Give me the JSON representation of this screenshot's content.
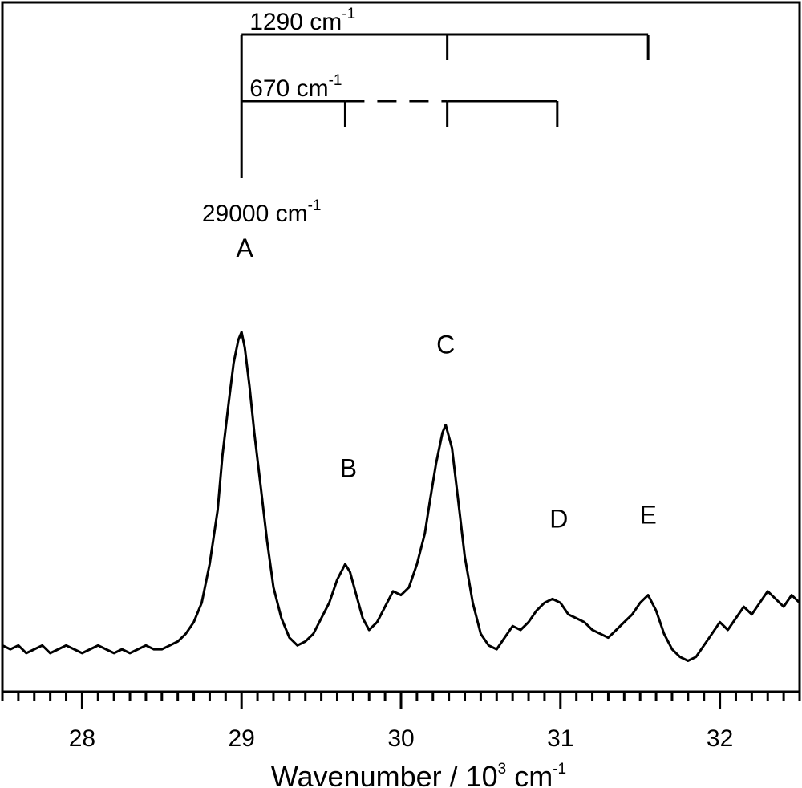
{
  "chart_data": {
    "type": "line",
    "xlabel": {
      "main": "Wavenumber / 10",
      "sup": "3",
      "after": " cm",
      "sup2": "-1"
    },
    "ylabel": "",
    "xlim": [
      27.5,
      32.5
    ],
    "ylim": [
      0,
      1
    ],
    "x_tick_labels": [
      "28",
      "29",
      "30",
      "31",
      "32"
    ],
    "x_tick_values": [
      28,
      29,
      30,
      31,
      32
    ],
    "x_minor_step": 0.1,
    "grid": false,
    "series": [
      {
        "x": [
          27.5,
          27.55,
          27.6,
          27.65,
          27.7,
          27.75,
          27.8,
          27.85,
          27.9,
          27.95,
          28.0,
          28.05,
          28.1,
          28.15,
          28.2,
          28.25,
          28.3,
          28.35,
          28.4,
          28.45,
          28.5,
          28.55,
          28.6,
          28.65,
          28.7,
          28.75,
          28.8,
          28.85,
          28.88,
          28.92,
          28.95,
          28.98,
          29.0,
          29.02,
          29.05,
          29.08,
          29.12,
          29.16,
          29.2,
          29.25,
          29.3,
          29.35,
          29.4,
          29.45,
          29.5,
          29.55,
          29.6,
          29.65,
          29.68,
          29.72,
          29.76,
          29.8,
          29.85,
          29.9,
          29.95,
          30.0,
          30.05,
          30.1,
          30.15,
          30.18,
          30.22,
          30.26,
          30.28,
          30.32,
          30.36,
          30.4,
          30.45,
          30.5,
          30.55,
          30.6,
          30.65,
          30.7,
          30.75,
          30.8,
          30.85,
          30.9,
          30.95,
          31.0,
          31.05,
          31.1,
          31.15,
          31.2,
          31.25,
          31.3,
          31.35,
          31.4,
          31.45,
          31.5,
          31.55,
          31.6,
          31.65,
          31.7,
          31.75,
          31.8,
          31.85,
          31.9,
          31.95,
          32.0,
          32.05,
          32.1,
          32.15,
          32.2,
          32.25,
          32.3,
          32.35,
          32.4,
          32.45,
          32.5
        ],
        "y": [
          0.07,
          0.06,
          0.07,
          0.05,
          0.06,
          0.07,
          0.05,
          0.06,
          0.07,
          0.06,
          0.05,
          0.06,
          0.07,
          0.06,
          0.05,
          0.06,
          0.05,
          0.06,
          0.07,
          0.06,
          0.06,
          0.07,
          0.08,
          0.1,
          0.13,
          0.18,
          0.28,
          0.42,
          0.56,
          0.7,
          0.8,
          0.86,
          0.88,
          0.84,
          0.74,
          0.62,
          0.48,
          0.34,
          0.22,
          0.14,
          0.09,
          0.07,
          0.08,
          0.1,
          0.14,
          0.18,
          0.24,
          0.28,
          0.26,
          0.2,
          0.14,
          0.11,
          0.13,
          0.17,
          0.21,
          0.2,
          0.22,
          0.28,
          0.36,
          0.44,
          0.54,
          0.62,
          0.64,
          0.58,
          0.44,
          0.3,
          0.18,
          0.1,
          0.07,
          0.06,
          0.09,
          0.12,
          0.11,
          0.13,
          0.16,
          0.18,
          0.19,
          0.18,
          0.15,
          0.14,
          0.13,
          0.11,
          0.1,
          0.09,
          0.11,
          0.13,
          0.15,
          0.18,
          0.2,
          0.16,
          0.1,
          0.06,
          0.04,
          0.03,
          0.04,
          0.07,
          0.1,
          0.13,
          0.11,
          0.14,
          0.17,
          0.15,
          0.18,
          0.21,
          0.19,
          0.17,
          0.2,
          0.18
        ]
      }
    ],
    "peak_labels": [
      {
        "text": "A",
        "x": 29.02,
        "y": 1.0
      },
      {
        "text": "B",
        "x": 29.67,
        "y": 0.43
      },
      {
        "text": "C",
        "x": 30.28,
        "y": 0.75
      },
      {
        "text": "D",
        "x": 30.99,
        "y": 0.3
      },
      {
        "text": "E",
        "x": 31.55,
        "y": 0.31
      }
    ],
    "progression_origin": {
      "x": 29.0,
      "label": "29000 cm",
      "label_sup": "-1"
    },
    "progressions": [
      {
        "label": "1290 cm",
        "label_sup": "-1",
        "markers": [
          30.29,
          31.55
        ],
        "dashed_range": null
      },
      {
        "label": "670 cm",
        "label_sup": "-1",
        "markers": [
          29.65,
          30.29,
          30.98
        ],
        "dashed_range": [
          29.65,
          30.29
        ]
      }
    ]
  }
}
